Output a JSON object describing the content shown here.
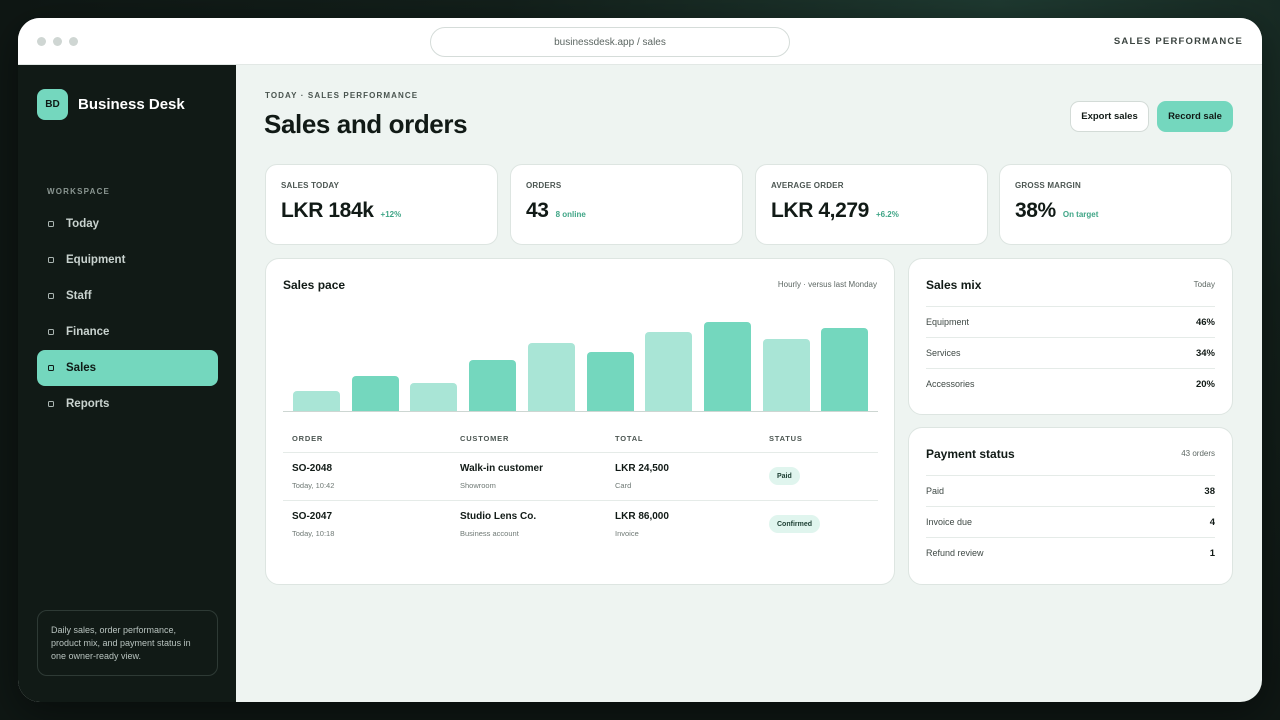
{
  "browser": {
    "url": "businessdesk.app / sales",
    "window_title": "SALES PERFORMANCE"
  },
  "sidebar": {
    "brand_initials": "BD",
    "brand_name": "Business Desk",
    "section_label": "WORKSPACE",
    "items": [
      {
        "label": "Today",
        "active": false
      },
      {
        "label": "Equipment",
        "active": false
      },
      {
        "label": "Staff",
        "active": false
      },
      {
        "label": "Finance",
        "active": false
      },
      {
        "label": "Sales",
        "active": true
      },
      {
        "label": "Reports",
        "active": false
      }
    ],
    "note": "Daily sales, order performance, product mix, and payment status in one owner-ready view."
  },
  "header": {
    "eyebrow": "TODAY · SALES PERFORMANCE",
    "title": "Sales and orders",
    "export_label": "Export sales",
    "record_label": "Record sale"
  },
  "kpis": [
    {
      "label": "SALES TODAY",
      "value": "LKR 184k",
      "delta": "+12%"
    },
    {
      "label": "ORDERS",
      "value": "43",
      "delta": "8 online"
    },
    {
      "label": "AVERAGE ORDER",
      "value": "LKR 4,279",
      "delta": "+6.2%"
    },
    {
      "label": "GROSS MARGIN",
      "value": "38%",
      "delta": "On target"
    }
  ],
  "sales_pace": {
    "title": "Sales pace",
    "meta": "Hourly · versus last Monday"
  },
  "chart_data": {
    "type": "bar",
    "values": [
      21,
      37,
      30,
      53,
      70,
      61,
      82,
      92,
      74,
      86
    ],
    "ylim": [
      0,
      100
    ],
    "bar_colors": [
      "#a9e5d6",
      "#74d7be",
      "#a9e5d6",
      "#74d7be",
      "#a9e5d6",
      "#74d7be",
      "#a9e5d6",
      "#74d7be",
      "#a9e5d6",
      "#74d7be"
    ],
    "title": "",
    "xlabel": "",
    "ylabel": ""
  },
  "orders_table": {
    "columns": [
      "ORDER",
      "CUSTOMER",
      "TOTAL",
      "STATUS"
    ],
    "rows": [
      {
        "order": "SO-2048",
        "order_time": "Today, 10:42",
        "customer": "Walk-in customer",
        "channel": "Showroom",
        "total": "LKR 24,500",
        "method": "Card",
        "status": "Paid"
      },
      {
        "order": "SO-2047",
        "order_time": "Today, 10:18",
        "customer": "Studio Lens Co.",
        "channel": "Business account",
        "total": "LKR 86,000",
        "method": "Invoice",
        "status": "Confirmed"
      }
    ]
  },
  "sales_mix": {
    "title": "Sales mix",
    "meta": "Today",
    "rows": [
      {
        "label": "Equipment",
        "value": "46%"
      },
      {
        "label": "Services",
        "value": "34%"
      },
      {
        "label": "Accessories",
        "value": "20%"
      }
    ]
  },
  "payment_status": {
    "title": "Payment status",
    "meta": "43 orders",
    "rows": [
      {
        "label": "Paid",
        "value": "38"
      },
      {
        "label": "Invoice due",
        "value": "4"
      },
      {
        "label": "Refund review",
        "value": "1"
      }
    ]
  },
  "colors": {
    "accent": "#74d7be",
    "accent_light": "#a9e5d6",
    "sidebar_bg": "#111a16",
    "content_bg": "#eef4f1"
  }
}
